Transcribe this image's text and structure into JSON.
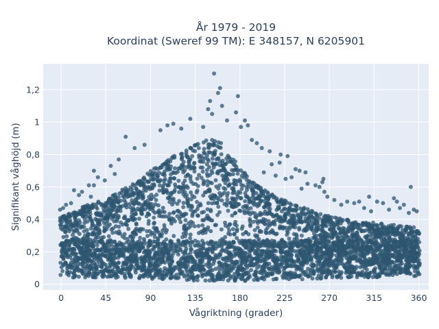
{
  "chart_data": {
    "type": "scatter",
    "title_lines": [
      "År 1979 - 2019",
      "Koordinat (Sweref 99 TM): E 348157, N 6205901"
    ],
    "xlabel": "Vågriktning (grader)",
    "ylabel": "Signifikant våghöjd (m)",
    "xlim": [
      -18,
      370
    ],
    "ylim": [
      -0.035,
      1.36
    ],
    "x_ticks": [
      {
        "value": 0,
        "label": "0"
      },
      {
        "value": 45,
        "label": "45"
      },
      {
        "value": 90,
        "label": "90"
      },
      {
        "value": 135,
        "label": "135"
      },
      {
        "value": 180,
        "label": "180"
      },
      {
        "value": 225,
        "label": "225"
      },
      {
        "value": 270,
        "label": "270"
      },
      {
        "value": 315,
        "label": "315"
      },
      {
        "value": 360,
        "label": "360"
      }
    ],
    "y_ticks": [
      {
        "value": 0,
        "label": "0"
      },
      {
        "value": 0.2,
        "label": "0,2"
      },
      {
        "value": 0.4,
        "label": "0,4"
      },
      {
        "value": 0.6,
        "label": "0,6"
      },
      {
        "value": 0.8,
        "label": "0,8"
      },
      {
        "value": 1.0,
        "label": "1"
      },
      {
        "value": 1.2,
        "label": "1,2"
      }
    ],
    "grid": true,
    "colors": {
      "marker": "#2e5570",
      "plot_background": "#e5ecf6",
      "grid": "#ffffff",
      "text": "#2a3f5f"
    },
    "density_envelope": {
      "x": [
        0,
        15,
        30,
        45,
        60,
        75,
        90,
        105,
        120,
        135,
        150,
        160,
        170,
        180,
        195,
        210,
        225,
        240,
        255,
        270,
        285,
        300,
        315,
        330,
        345,
        360
      ],
      "y_max": [
        0.42,
        0.46,
        0.5,
        0.52,
        0.58,
        0.63,
        0.7,
        0.76,
        0.82,
        0.86,
        0.9,
        0.88,
        0.8,
        0.72,
        0.62,
        0.56,
        0.52,
        0.48,
        0.45,
        0.42,
        0.4,
        0.39,
        0.38,
        0.37,
        0.36,
        0.35
      ],
      "y_min": [
        0.05,
        0.04,
        0.04,
        0.04,
        0.04,
        0.04,
        0.03,
        0.03,
        0.03,
        0.02,
        0.02,
        0.02,
        0.02,
        0.02,
        0.02,
        0.03,
        0.03,
        0.03,
        0.03,
        0.04,
        0.04,
        0.04,
        0.04,
        0.05,
        0.05,
        0.05
      ]
    },
    "outliers": [
      {
        "x": 154,
        "y": 1.3
      },
      {
        "x": 160,
        "y": 1.21
      },
      {
        "x": 158,
        "y": 1.18
      },
      {
        "x": 150,
        "y": 1.13
      },
      {
        "x": 162,
        "y": 1.1
      },
      {
        "x": 178,
        "y": 1.16
      },
      {
        "x": 176,
        "y": 1.06
      },
      {
        "x": 152,
        "y": 1.05
      },
      {
        "x": 148,
        "y": 1.08
      },
      {
        "x": 130,
        "y": 1.02
      },
      {
        "x": 167,
        "y": 1.01
      },
      {
        "x": 185,
        "y": 1.01
      },
      {
        "x": 107,
        "y": 0.98
      },
      {
        "x": 113,
        "y": 0.99
      },
      {
        "x": 121,
        "y": 0.96
      },
      {
        "x": 143,
        "y": 0.97
      },
      {
        "x": 188,
        "y": 0.98
      },
      {
        "x": 181,
        "y": 0.97
      },
      {
        "x": 100,
        "y": 0.95
      },
      {
        "x": 65,
        "y": 0.91
      },
      {
        "x": 192,
        "y": 0.89
      },
      {
        "x": 197,
        "y": 0.87
      },
      {
        "x": 84,
        "y": 0.86
      },
      {
        "x": 74,
        "y": 0.84
      },
      {
        "x": 202,
        "y": 0.84
      },
      {
        "x": 210,
        "y": 0.82
      },
      {
        "x": 221,
        "y": 0.8
      },
      {
        "x": 228,
        "y": 0.79
      },
      {
        "x": 58,
        "y": 0.77
      },
      {
        "x": 220,
        "y": 0.75
      },
      {
        "x": 212,
        "y": 0.74
      },
      {
        "x": 50,
        "y": 0.73
      },
      {
        "x": 33,
        "y": 0.7
      },
      {
        "x": 236,
        "y": 0.71
      },
      {
        "x": 240,
        "y": 0.7
      },
      {
        "x": 246,
        "y": 0.69
      },
      {
        "x": 204,
        "y": 0.69
      },
      {
        "x": 54,
        "y": 0.68
      },
      {
        "x": 37,
        "y": 0.66
      },
      {
        "x": 216,
        "y": 0.67
      },
      {
        "x": 232,
        "y": 0.66
      },
      {
        "x": 226,
        "y": 0.65
      },
      {
        "x": 264,
        "y": 0.65
      },
      {
        "x": 263,
        "y": 0.63
      },
      {
        "x": 44,
        "y": 0.64
      },
      {
        "x": 28,
        "y": 0.61
      },
      {
        "x": 33,
        "y": 0.61
      },
      {
        "x": 248,
        "y": 0.62
      },
      {
        "x": 256,
        "y": 0.61
      },
      {
        "x": 260,
        "y": 0.6
      },
      {
        "x": 352,
        "y": 0.6
      },
      {
        "x": 242,
        "y": 0.59
      },
      {
        "x": 13,
        "y": 0.58
      },
      {
        "x": 265,
        "y": 0.57
      },
      {
        "x": 21,
        "y": 0.57
      },
      {
        "x": 18,
        "y": 0.55
      },
      {
        "x": 30,
        "y": 0.54
      },
      {
        "x": 268,
        "y": 0.54
      },
      {
        "x": 275,
        "y": 0.52
      },
      {
        "x": 310,
        "y": 0.54
      },
      {
        "x": 335,
        "y": 0.53
      },
      {
        "x": 288,
        "y": 0.51
      },
      {
        "x": 300,
        "y": 0.51
      },
      {
        "x": 318,
        "y": 0.51
      },
      {
        "x": 338,
        "y": 0.51
      },
      {
        "x": 324,
        "y": 0.5
      },
      {
        "x": 10,
        "y": 0.5
      },
      {
        "x": 5,
        "y": 0.49
      },
      {
        "x": 295,
        "y": 0.5
      },
      {
        "x": 345,
        "y": 0.49
      },
      {
        "x": 282,
        "y": 0.49
      },
      {
        "x": 355,
        "y": 0.46
      },
      {
        "x": 2,
        "y": 0.47
      },
      {
        "x": -1,
        "y": 0.46
      },
      {
        "x": 305,
        "y": 0.47
      },
      {
        "x": 341,
        "y": 0.47
      },
      {
        "x": 330,
        "y": 0.46
      },
      {
        "x": 358,
        "y": 0.45
      },
      {
        "x": 350,
        "y": 0.44
      },
      {
        "x": 312,
        "y": 0.45
      }
    ]
  }
}
